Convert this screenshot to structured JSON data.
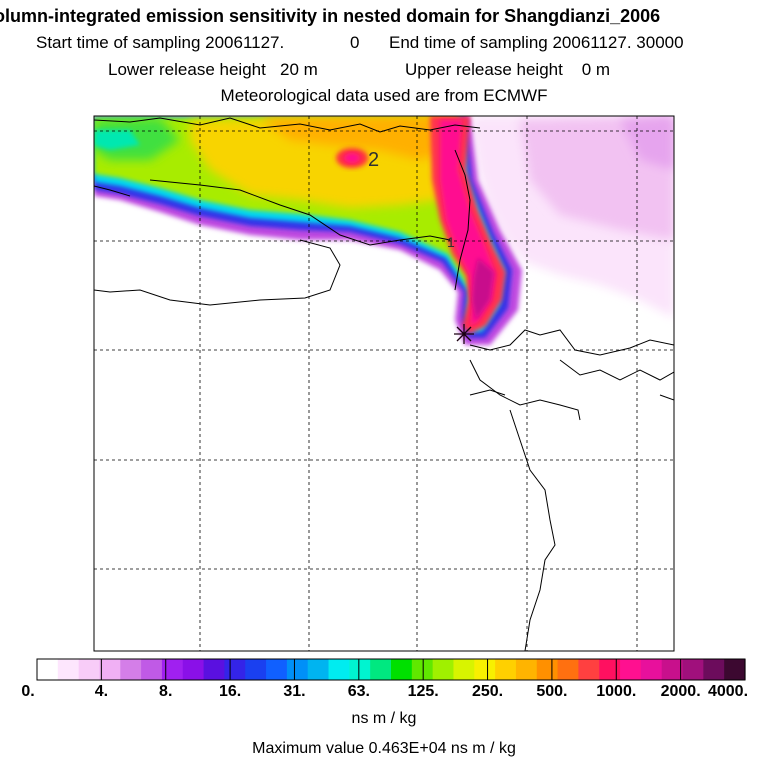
{
  "header": {
    "title": "olumn-integrated emission sensitivity in nested domain for Shangdianzi_2006",
    "start_label": "Start time of sampling 20061127.",
    "start_hour": "0",
    "end_label": "End time of sampling 20061127. 30000",
    "lower_release": "Lower release height   20 m",
    "upper_release": "Upper release height    0 m",
    "met_data": "Meteorological data used are from ECMWF"
  },
  "map": {
    "contour_label": "2",
    "contour_label_small": "1",
    "receptor": "receptor-marker"
  },
  "legend": {
    "tick_labels": [
      "0.",
      "4.",
      "8.",
      "16.",
      "31.",
      "63.",
      "125.",
      "250.",
      "500.",
      "1000.",
      "2000.",
      "4000."
    ],
    "colors": [
      "#ffffff",
      "#fde6fd",
      "#f8ccf8",
      "#f0b0f4",
      "#d47ee8",
      "#c05ae6",
      "#a020f0",
      "#8a10e8",
      "#5a10e0",
      "#3424e8",
      "#1a40f0",
      "#1060ff",
      "#0090f8",
      "#00b4f0",
      "#00ecf0",
      "#00f4d0",
      "#00e880",
      "#00e000",
      "#60e800",
      "#a0f000",
      "#d8f400",
      "#f8f000",
      "#ffd000",
      "#ffb400",
      "#ff9000",
      "#ff7010",
      "#ff4040",
      "#ff1060",
      "#ff1090",
      "#e8109c",
      "#c8108c",
      "#a0107c",
      "#6c0c5c",
      "#3c0830"
    ],
    "units": "ns m / kg",
    "max_value": "Maximum value  0.463E+04 ns m / kg"
  }
}
